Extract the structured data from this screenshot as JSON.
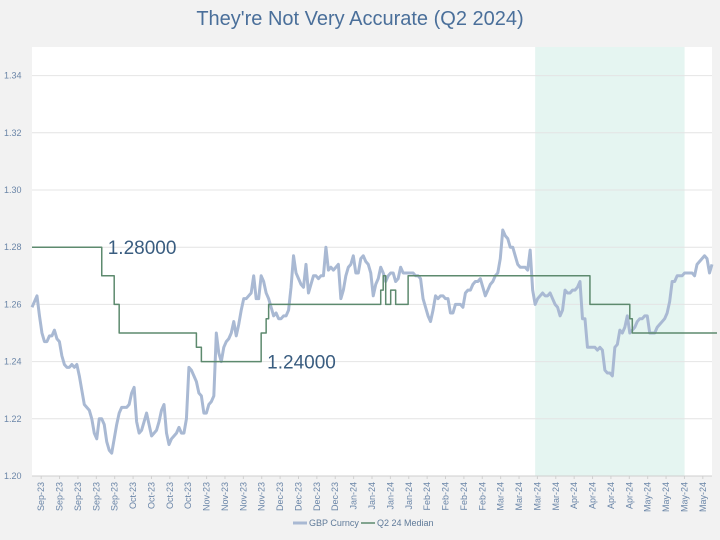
{
  "chart_data": {
    "type": "line",
    "title": "They're Not Very Accurate (Q2 2024)",
    "ylim": [
      1.2,
      1.35
    ],
    "yticks": [
      "1.20",
      "1.22",
      "1.24",
      "1.26",
      "1.28",
      "1.30",
      "1.32",
      "1.34"
    ],
    "x_tick_labels": [
      "Sep-23",
      "Sep-23",
      "Sep-23",
      "Sep-23",
      "Sep-23",
      "Oct-23",
      "Oct-23",
      "Oct-23",
      "Oct-23",
      "Nov-23",
      "Nov-23",
      "Nov-23",
      "Nov-23",
      "Dec-23",
      "Dec-23",
      "Dec-23",
      "Dec-23",
      "Jan-24",
      "Jan-24",
      "Jan-24",
      "Jan-24",
      "Feb-24",
      "Feb-24",
      "Feb-24",
      "Feb-24",
      "Mar-24",
      "Mar-24",
      "Mar-24",
      "Mar-24",
      "Apr-24",
      "Apr-24",
      "Apr-24",
      "Apr-24",
      "May-24",
      "May-24",
      "May-24",
      "May-24"
    ],
    "shaded_region": {
      "from_index": 202,
      "to_index": 262,
      "color": "#e5f5f1"
    },
    "series": [
      {
        "name": "GBP Curncy",
        "color": "#a9b9d3",
        "values": [
          1.259,
          1.261,
          1.263,
          1.256,
          1.25,
          1.247,
          1.247,
          1.249,
          1.249,
          1.251,
          1.248,
          1.247,
          1.242,
          1.239,
          1.238,
          1.238,
          1.239,
          1.238,
          1.239,
          1.235,
          1.23,
          1.225,
          1.224,
          1.223,
          1.22,
          1.215,
          1.213,
          1.22,
          1.22,
          1.218,
          1.212,
          1.209,
          1.208,
          1.213,
          1.218,
          1.222,
          1.224,
          1.224,
          1.224,
          1.225,
          1.229,
          1.231,
          1.219,
          1.215,
          1.216,
          1.219,
          1.222,
          1.218,
          1.214,
          1.215,
          1.216,
          1.219,
          1.223,
          1.225,
          1.215,
          1.211,
          1.213,
          1.214,
          1.215,
          1.217,
          1.215,
          1.215,
          1.22,
          1.238,
          1.237,
          1.235,
          1.233,
          1.229,
          1.228,
          1.222,
          1.222,
          1.225,
          1.226,
          1.228,
          1.25,
          1.243,
          1.24,
          1.245,
          1.247,
          1.248,
          1.25,
          1.254,
          1.249,
          1.253,
          1.258,
          1.262,
          1.262,
          1.263,
          1.264,
          1.27,
          1.262,
          1.262,
          1.27,
          1.268,
          1.264,
          1.262,
          1.259,
          1.256,
          1.257,
          1.255,
          1.255,
          1.256,
          1.256,
          1.258,
          1.266,
          1.277,
          1.271,
          1.269,
          1.267,
          1.266,
          1.274,
          1.264,
          1.267,
          1.27,
          1.27,
          1.269,
          1.27,
          1.27,
          1.28,
          1.272,
          1.273,
          1.272,
          1.273,
          1.274,
          1.262,
          1.265,
          1.27,
          1.273,
          1.274,
          1.277,
          1.271,
          1.271,
          1.276,
          1.277,
          1.275,
          1.274,
          1.271,
          1.263,
          1.267,
          1.269,
          1.273,
          1.271,
          1.268,
          1.27,
          1.271,
          1.271,
          1.268,
          1.269,
          1.273,
          1.271,
          1.271,
          1.271,
          1.271,
          1.271,
          1.27,
          1.27,
          1.269,
          1.262,
          1.259,
          1.256,
          1.254,
          1.258,
          1.263,
          1.262,
          1.263,
          1.263,
          1.262,
          1.262,
          1.257,
          1.257,
          1.26,
          1.26,
          1.26,
          1.259,
          1.264,
          1.265,
          1.265,
          1.267,
          1.268,
          1.268,
          1.269,
          1.266,
          1.263,
          1.265,
          1.267,
          1.268,
          1.27,
          1.271,
          1.276,
          1.286,
          1.284,
          1.283,
          1.28,
          1.28,
          1.277,
          1.274,
          1.273,
          1.273,
          1.273,
          1.272,
          1.279,
          1.265,
          1.26,
          1.262,
          1.263,
          1.264,
          1.263,
          1.263,
          1.264,
          1.262,
          1.26,
          1.259,
          1.256,
          1.258,
          1.265,
          1.264,
          1.264,
          1.265,
          1.265,
          1.266,
          1.268,
          1.255,
          1.255,
          1.245,
          1.245,
          1.245,
          1.245,
          1.244,
          1.245,
          1.244,
          1.237,
          1.236,
          1.236,
          1.235,
          1.245,
          1.246,
          1.251,
          1.25,
          1.252,
          1.256,
          1.25,
          1.251,
          1.252,
          1.254,
          1.255,
          1.255,
          1.256,
          1.256,
          1.25,
          1.25,
          1.25,
          1.252,
          1.253,
          1.254,
          1.255,
          1.257,
          1.261,
          1.268,
          1.268,
          1.27,
          1.27,
          1.27,
          1.271,
          1.271,
          1.271,
          1.271,
          1.27,
          1.274,
          1.275,
          1.276,
          1.277,
          1.276,
          1.271,
          1.274
        ]
      },
      {
        "name": "Q2 24 Median",
        "color": "#5d8a6e",
        "values": [
          1.28,
          1.28,
          1.28,
          1.28,
          1.28,
          1.28,
          1.28,
          1.28,
          1.28,
          1.28,
          1.28,
          1.28,
          1.28,
          1.28,
          1.28,
          1.28,
          1.28,
          1.28,
          1.28,
          1.28,
          1.28,
          1.28,
          1.28,
          1.28,
          1.28,
          1.28,
          1.28,
          1.28,
          1.27,
          1.27,
          1.27,
          1.27,
          1.27,
          1.26,
          1.26,
          1.25,
          1.25,
          1.25,
          1.25,
          1.25,
          1.25,
          1.25,
          1.25,
          1.25,
          1.25,
          1.25,
          1.25,
          1.25,
          1.25,
          1.25,
          1.25,
          1.25,
          1.25,
          1.25,
          1.25,
          1.25,
          1.25,
          1.25,
          1.25,
          1.25,
          1.25,
          1.25,
          1.25,
          1.25,
          1.25,
          1.25,
          1.245,
          1.245,
          1.24,
          1.24,
          1.24,
          1.24,
          1.24,
          1.24,
          1.24,
          1.24,
          1.24,
          1.24,
          1.24,
          1.24,
          1.24,
          1.24,
          1.24,
          1.24,
          1.24,
          1.24,
          1.24,
          1.24,
          1.24,
          1.24,
          1.24,
          1.24,
          1.25,
          1.25,
          1.255,
          1.26,
          1.26,
          1.26,
          1.26,
          1.26,
          1.26,
          1.26,
          1.26,
          1.26,
          1.26,
          1.26,
          1.26,
          1.26,
          1.26,
          1.26,
          1.26,
          1.26,
          1.26,
          1.26,
          1.26,
          1.26,
          1.26,
          1.26,
          1.26,
          1.26,
          1.26,
          1.26,
          1.26,
          1.26,
          1.26,
          1.26,
          1.26,
          1.26,
          1.26,
          1.26,
          1.26,
          1.26,
          1.26,
          1.26,
          1.26,
          1.26,
          1.26,
          1.26,
          1.26,
          1.26,
          1.265,
          1.27,
          1.26,
          1.26,
          1.265,
          1.265,
          1.26,
          1.26,
          1.26,
          1.26,
          1.26,
          1.27,
          1.27,
          1.27,
          1.27,
          1.27,
          1.27,
          1.27,
          1.27,
          1.27,
          1.27,
          1.27,
          1.27,
          1.27,
          1.27,
          1.27,
          1.27,
          1.27,
          1.27,
          1.27,
          1.27,
          1.27,
          1.27,
          1.27,
          1.27,
          1.27,
          1.27,
          1.27,
          1.27,
          1.27,
          1.27,
          1.27,
          1.27,
          1.27,
          1.27,
          1.27,
          1.27,
          1.27,
          1.27,
          1.27,
          1.27,
          1.27,
          1.27,
          1.27,
          1.27,
          1.27,
          1.27,
          1.27,
          1.27,
          1.27,
          1.27,
          1.27,
          1.27,
          1.27,
          1.27,
          1.27,
          1.27,
          1.27,
          1.27,
          1.27,
          1.27,
          1.27,
          1.27,
          1.27,
          1.27,
          1.27,
          1.27,
          1.27,
          1.27,
          1.27,
          1.27,
          1.27,
          1.27,
          1.27,
          1.26,
          1.26,
          1.26,
          1.26,
          1.26,
          1.26,
          1.26,
          1.26,
          1.26,
          1.26,
          1.26,
          1.26,
          1.26,
          1.26,
          1.26,
          1.26,
          1.255,
          1.25,
          1.25,
          1.25,
          1.25,
          1.25,
          1.25,
          1.25,
          1.25,
          1.25,
          1.25,
          1.25,
          1.25,
          1.25,
          1.25,
          1.25,
          1.25,
          1.25,
          1.25,
          1.25,
          1.25,
          1.25,
          1.25,
          1.25,
          1.25,
          1.25,
          1.25,
          1.25,
          1.25,
          1.25,
          1.25,
          1.25,
          1.25,
          1.25,
          1.25,
          1.25
        ]
      }
    ],
    "annotations": [
      {
        "text": "1.28000",
        "value": 1.28,
        "index": 28
      },
      {
        "text": "1.24000",
        "value": 1.24,
        "index": 92
      }
    ],
    "legend_position": "bottom",
    "grid": true
  }
}
